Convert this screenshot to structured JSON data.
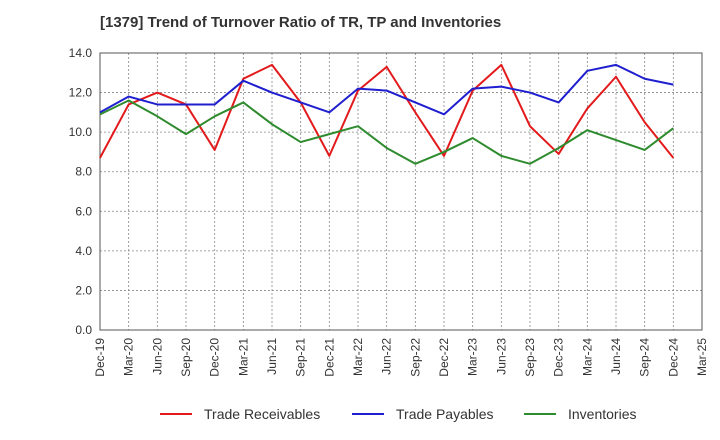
{
  "chart_data": {
    "type": "line",
    "title": "[1379]  Trend of Turnover Ratio of TR, TP and Inventories",
    "xlabel": "",
    "ylabel": "",
    "ylim": [
      0,
      14
    ],
    "yticks": [
      "0.0",
      "2.0",
      "4.0",
      "6.0",
      "8.0",
      "10.0",
      "12.0",
      "14.0"
    ],
    "x_tick_labels": [
      "Dec-19",
      "Mar-20",
      "Jun-20",
      "Sep-20",
      "Dec-20",
      "Mar-21",
      "Jun-21",
      "Sep-21",
      "Dec-21",
      "Mar-22",
      "Jun-22",
      "Sep-22",
      "Dec-22",
      "Mar-23",
      "Jun-23",
      "Sep-23",
      "Dec-23",
      "Mar-24",
      "Jun-24",
      "Sep-24",
      "Dec-24",
      "Mar-25"
    ],
    "categories": [
      "Dec-19",
      "Mar-20",
      "Jun-20",
      "Sep-20",
      "Dec-20",
      "Mar-21",
      "Jun-21",
      "Sep-21",
      "Dec-21",
      "Mar-22",
      "Jun-22",
      "Sep-22",
      "Dec-22",
      "Mar-23",
      "Jun-23",
      "Sep-23",
      "Dec-23",
      "Mar-24",
      "Jun-24",
      "Sep-24",
      "Dec-24"
    ],
    "grid": true,
    "legend_position": "bottom",
    "series": [
      {
        "name": "Trade Receivables",
        "color": "#e31a1c",
        "values": [
          8.7,
          11.4,
          12.0,
          11.4,
          9.1,
          12.7,
          13.4,
          11.5,
          8.8,
          12.1,
          13.3,
          11.0,
          8.8,
          12.1,
          13.4,
          10.3,
          8.9,
          11.2,
          12.8,
          10.5,
          8.7
        ]
      },
      {
        "name": "Trade Payables",
        "color": "#1f1fd0",
        "values": [
          11.0,
          11.8,
          11.4,
          11.4,
          11.4,
          12.6,
          12.0,
          11.5,
          11.0,
          12.2,
          12.1,
          11.5,
          10.9,
          12.2,
          12.3,
          12.0,
          11.5,
          13.1,
          13.4,
          12.7,
          12.4
        ]
      },
      {
        "name": "Inventories",
        "color": "#2e8b2e",
        "values": [
          10.9,
          11.6,
          10.8,
          9.9,
          10.8,
          11.5,
          10.4,
          9.5,
          9.9,
          10.3,
          9.2,
          8.4,
          9.0,
          9.7,
          8.8,
          8.4,
          9.2,
          10.1,
          9.6,
          9.1,
          10.2
        ]
      }
    ]
  }
}
